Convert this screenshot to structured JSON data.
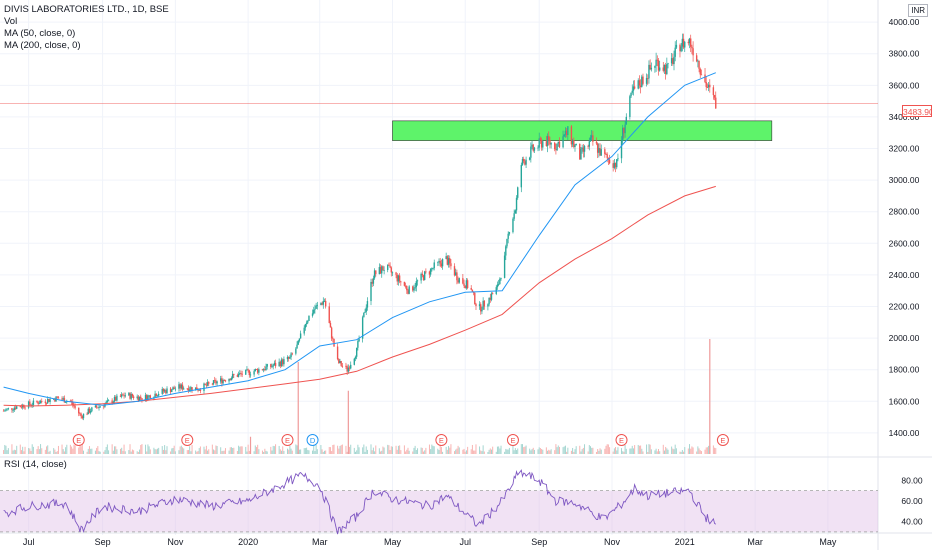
{
  "legend": {
    "title": "DIVIS LABORATORIES LTD., 1D, BSE",
    "vol": "Vol",
    "ma50": "MA (50, close, 0)",
    "ma200": "MA (200, close, 0)",
    "rsi": "RSI (14, close)",
    "currency": "INR",
    "currency_top": "4,000 INR"
  },
  "current_price_label": "3483.90",
  "colors": {
    "up": "#26a69a",
    "down": "#ef5350",
    "ma50": "#2196f3",
    "ma200": "#ef5350",
    "zone": "#5ef36a",
    "rsi_line": "#7e57c2",
    "rsi_band": "#e1bee7"
  },
  "events": [
    {
      "type": "E",
      "date": "2019-08-12"
    },
    {
      "type": "E",
      "date": "2019-11-11"
    },
    {
      "type": "E",
      "date": "2020-02-03"
    },
    {
      "type": "D",
      "date": "2020-02-24"
    },
    {
      "type": "E",
      "date": "2020-06-11"
    },
    {
      "type": "E",
      "date": "2020-08-10"
    },
    {
      "type": "E",
      "date": "2020-11-09"
    },
    {
      "type": "E",
      "date": "2021-02-02"
    }
  ],
  "chart_data": {
    "type": "candlestick",
    "title": "DIVIS LABORATORIES LTD., 1D, BSE",
    "y_axis": {
      "ticks": [
        1400,
        1600,
        1800,
        2000,
        2200,
        2400,
        2600,
        2800,
        3000,
        3200,
        3400,
        3600,
        3800,
        4000
      ],
      "range": [
        1260,
        4140
      ],
      "unit": "INR"
    },
    "x_axis": {
      "ticks": [
        {
          "label": "Jul",
          "date": "2019-07-01"
        },
        {
          "label": "Sep",
          "date": "2019-09-01"
        },
        {
          "label": "Nov",
          "date": "2019-11-01"
        },
        {
          "label": "2020",
          "date": "2020-01-01"
        },
        {
          "label": "Mar",
          "date": "2020-03-01"
        },
        {
          "label": "May",
          "date": "2020-05-01"
        },
        {
          "label": "Jul",
          "date": "2020-07-01"
        },
        {
          "label": "Sep",
          "date": "2020-09-01"
        },
        {
          "label": "Nov",
          "date": "2020-11-01"
        },
        {
          "label": "2021",
          "date": "2021-01-01"
        },
        {
          "label": "Mar",
          "date": "2021-03-01"
        },
        {
          "label": "May",
          "date": "2021-05-01"
        }
      ],
      "range": [
        "2019-06-07",
        "2021-06-12"
      ]
    },
    "close_path": [
      [
        "2019-06-10",
        1540
      ],
      [
        "2019-06-20",
        1565
      ],
      [
        "2019-07-01",
        1580
      ],
      [
        "2019-07-15",
        1605
      ],
      [
        "2019-07-25",
        1620
      ],
      [
        "2019-08-05",
        1600
      ],
      [
        "2019-08-14",
        1505
      ],
      [
        "2019-08-22",
        1545
      ],
      [
        "2019-09-05",
        1590
      ],
      [
        "2019-09-20",
        1640
      ],
      [
        "2019-10-05",
        1620
      ],
      [
        "2019-10-20",
        1660
      ],
      [
        "2019-11-05",
        1690
      ],
      [
        "2019-11-20",
        1680
      ],
      [
        "2019-12-05",
        1720
      ],
      [
        "2019-12-20",
        1760
      ],
      [
        "2020-01-05",
        1790
      ],
      [
        "2020-01-20",
        1820
      ],
      [
        "2020-02-05",
        1870
      ],
      [
        "2020-02-12",
        1960
      ],
      [
        "2020-02-18",
        2100
      ],
      [
        "2020-02-25",
        2180
      ],
      [
        "2020-03-05",
        2240
      ],
      [
        "2020-03-10",
        2050
      ],
      [
        "2020-03-16",
        1850
      ],
      [
        "2020-03-24",
        1800
      ],
      [
        "2020-04-01",
        1920
      ],
      [
        "2020-04-08",
        2180
      ],
      [
        "2020-04-15",
        2400
      ],
      [
        "2020-04-25",
        2450
      ],
      [
        "2020-05-05",
        2380
      ],
      [
        "2020-05-15",
        2300
      ],
      [
        "2020-05-25",
        2380
      ],
      [
        "2020-06-05",
        2450
      ],
      [
        "2020-06-15",
        2500
      ],
      [
        "2020-06-25",
        2380
      ],
      [
        "2020-07-05",
        2320
      ],
      [
        "2020-07-12",
        2180
      ],
      [
        "2020-07-20",
        2240
      ],
      [
        "2020-07-28",
        2320
      ],
      [
        "2020-08-03",
        2500
      ],
      [
        "2020-08-07",
        2700
      ],
      [
        "2020-08-12",
        2820
      ],
      [
        "2020-08-17",
        3100
      ],
      [
        "2020-08-25",
        3180
      ],
      [
        "2020-09-05",
        3250
      ],
      [
        "2020-09-15",
        3220
      ],
      [
        "2020-09-25",
        3300
      ],
      [
        "2020-10-05",
        3150
      ],
      [
        "2020-10-15",
        3250
      ],
      [
        "2020-10-25",
        3150
      ],
      [
        "2020-11-05",
        3100
      ],
      [
        "2020-11-10",
        3300
      ],
      [
        "2020-11-18",
        3550
      ],
      [
        "2020-11-28",
        3650
      ],
      [
        "2020-12-08",
        3750
      ],
      [
        "2020-12-18",
        3700
      ],
      [
        "2020-12-28",
        3860
      ],
      [
        "2021-01-05",
        3880
      ],
      [
        "2021-01-12",
        3760
      ],
      [
        "2021-01-18",
        3620
      ],
      [
        "2021-01-22",
        3560
      ],
      [
        "2021-01-27",
        3483.9
      ]
    ],
    "ma50": [
      [
        "2019-06-10",
        1690
      ],
      [
        "2019-07-01",
        1650
      ],
      [
        "2019-08-01",
        1600
      ],
      [
        "2019-09-01",
        1575
      ],
      [
        "2019-10-01",
        1600
      ],
      [
        "2019-11-01",
        1650
      ],
      [
        "2019-12-01",
        1690
      ],
      [
        "2020-01-01",
        1730
      ],
      [
        "2020-02-01",
        1800
      ],
      [
        "2020-03-01",
        1950
      ],
      [
        "2020-04-01",
        1990
      ],
      [
        "2020-05-01",
        2130
      ],
      [
        "2020-06-01",
        2230
      ],
      [
        "2020-07-01",
        2290
      ],
      [
        "2020-08-01",
        2300
      ],
      [
        "2020-09-01",
        2650
      ],
      [
        "2020-10-01",
        2970
      ],
      [
        "2020-11-01",
        3150
      ],
      [
        "2020-12-01",
        3400
      ],
      [
        "2021-01-01",
        3600
      ],
      [
        "2021-01-27",
        3680
      ]
    ],
    "ma200": [
      [
        "2019-06-10",
        1575
      ],
      [
        "2019-07-01",
        1570
      ],
      [
        "2019-08-01",
        1575
      ],
      [
        "2019-09-01",
        1585
      ],
      [
        "2019-10-01",
        1600
      ],
      [
        "2019-11-01",
        1625
      ],
      [
        "2019-12-01",
        1650
      ],
      [
        "2020-01-01",
        1680
      ],
      [
        "2020-02-01",
        1710
      ],
      [
        "2020-03-01",
        1740
      ],
      [
        "2020-04-01",
        1790
      ],
      [
        "2020-05-01",
        1880
      ],
      [
        "2020-06-01",
        1960
      ],
      [
        "2020-07-01",
        2050
      ],
      [
        "2020-08-01",
        2150
      ],
      [
        "2020-09-01",
        2350
      ],
      [
        "2020-10-01",
        2500
      ],
      [
        "2020-11-01",
        2630
      ],
      [
        "2020-12-01",
        2780
      ],
      [
        "2021-01-01",
        2900
      ],
      [
        "2021-01-27",
        2960
      ]
    ],
    "zone": {
      "from_date": "2020-05-01",
      "to_date": "2021-03-15",
      "low": 3250,
      "high": 3375
    },
    "current_price": 3483.9,
    "volume_spikes": [
      {
        "date": "2020-02-12",
        "relative": 0.8
      },
      {
        "date": "2020-03-25",
        "relative": 0.55
      },
      {
        "date": "2021-01-22",
        "relative": 1.0
      },
      {
        "date": "2020-01-03",
        "relative": 0.15
      }
    ],
    "rsi": {
      "ticks": [
        40,
        60,
        80
      ],
      "upper": 70,
      "lower": 30,
      "range": [
        27,
        90
      ],
      "points": [
        [
          "2019-06-10",
          48
        ],
        [
          "2019-07-01",
          55
        ],
        [
          "2019-08-01",
          58
        ],
        [
          "2019-08-14",
          32
        ],
        [
          "2019-09-01",
          55
        ],
        [
          "2019-10-01",
          50
        ],
        [
          "2019-11-01",
          62
        ],
        [
          "2019-12-01",
          55
        ],
        [
          "2020-01-01",
          60
        ],
        [
          "2020-02-15",
          85
        ],
        [
          "2020-03-01",
          75
        ],
        [
          "2020-03-16",
          30
        ],
        [
          "2020-04-01",
          45
        ],
        [
          "2020-04-15",
          70
        ],
        [
          "2020-05-01",
          62
        ],
        [
          "2020-06-01",
          55
        ],
        [
          "2020-06-15",
          65
        ],
        [
          "2020-07-01",
          48
        ],
        [
          "2020-07-12",
          36
        ],
        [
          "2020-08-01",
          60
        ],
        [
          "2020-08-15",
          88
        ],
        [
          "2020-09-01",
          80
        ],
        [
          "2020-09-15",
          60
        ],
        [
          "2020-10-01",
          58
        ],
        [
          "2020-10-25",
          42
        ],
        [
          "2020-11-10",
          58
        ],
        [
          "2020-11-20",
          72
        ],
        [
          "2020-12-01",
          65
        ],
        [
          "2020-12-20",
          68
        ],
        [
          "2021-01-05",
          70
        ],
        [
          "2021-01-18",
          45
        ],
        [
          "2021-01-27",
          37
        ]
      ]
    }
  }
}
